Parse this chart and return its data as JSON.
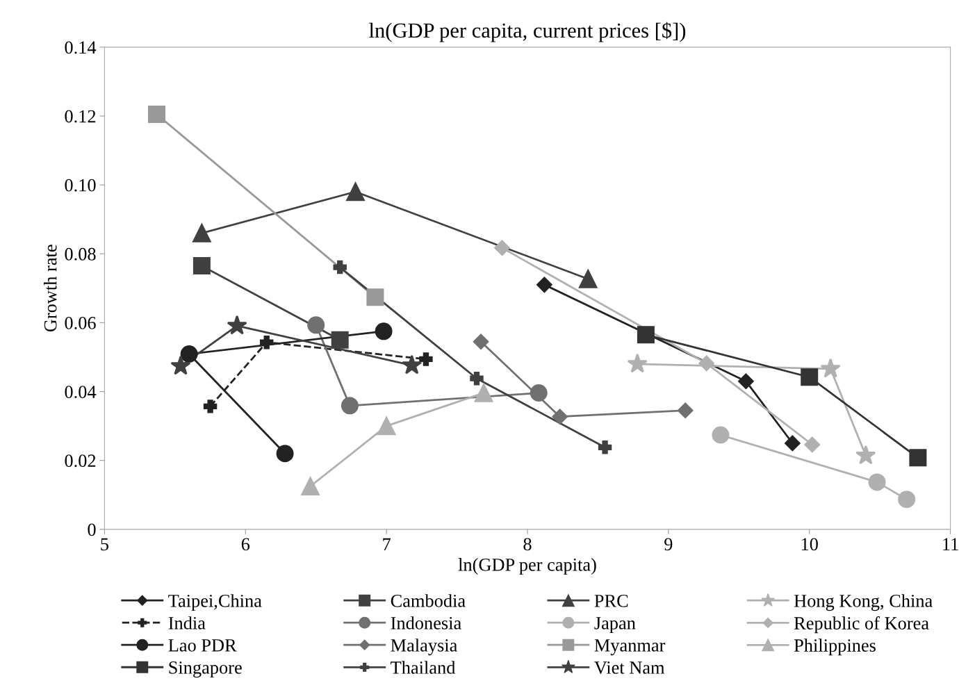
{
  "chart_data": {
    "type": "line",
    "title": "ln(GDP per capita, current prices [$])",
    "xlabel": "ln(GDP per capita)",
    "ylabel": "Growth rate",
    "xlim": [
      5,
      11
    ],
    "xticks": [
      5,
      6,
      7,
      8,
      9,
      10,
      11
    ],
    "ylim": [
      0,
      0.14
    ],
    "yticks": [
      {
        "value": 0,
        "label": "0"
      },
      {
        "value": 0.02,
        "label": "0.02"
      },
      {
        "value": 0.04,
        "label": "0.04"
      },
      {
        "value": 0.06,
        "label": "0.06"
      },
      {
        "value": 0.08,
        "label": "0.08"
      },
      {
        "value": 0.1,
        "label": "0.10"
      },
      {
        "value": 0.12,
        "label": "0.12"
      },
      {
        "value": 0.14,
        "label": "0.14"
      }
    ],
    "grid": false,
    "legend": "bottom",
    "series": [
      {
        "name": "Taipei,China",
        "color": "#222222",
        "marker": "diamond",
        "x": [
          8.12,
          9.55,
          9.88
        ],
        "values": [
          0.071,
          0.043,
          0.025
        ]
      },
      {
        "name": "Cambodia",
        "color": "#404040",
        "marker": "square",
        "x": [
          5.69,
          6.67
        ],
        "values": [
          0.0765,
          0.055
        ]
      },
      {
        "name": "PRC",
        "color": "#404040",
        "marker": "triangle",
        "x": [
          5.69,
          6.78,
          8.43
        ],
        "values": [
          0.086,
          0.098,
          0.0727
        ]
      },
      {
        "name": "Hong Kong, China",
        "color": "#b0b0b0",
        "marker": "star",
        "x": [
          8.78,
          10.15,
          10.4
        ],
        "values": [
          0.048,
          0.0466,
          0.0214
        ]
      },
      {
        "name": "India",
        "color": "#222222",
        "marker": "cross",
        "line_style": "dashed",
        "x": [
          5.75,
          6.15,
          7.28
        ],
        "values": [
          0.0357,
          0.0543,
          0.0494
        ]
      },
      {
        "name": "Indonesia",
        "color": "#707070",
        "marker": "circle",
        "x": [
          6.5,
          6.74,
          8.08
        ],
        "values": [
          0.0593,
          0.0359,
          0.0396
        ]
      },
      {
        "name": "Japan",
        "color": "#b0b0b0",
        "marker": "circle",
        "x": [
          9.37,
          10.48,
          10.69
        ],
        "values": [
          0.0274,
          0.0137,
          0.0087
        ]
      },
      {
        "name": "Republic of Korea",
        "color": "#b0b0b0",
        "marker": "diamond",
        "x": [
          7.82,
          9.27,
          10.02
        ],
        "values": [
          0.0817,
          0.0482,
          0.0246
        ]
      },
      {
        "name": "Lao PDR",
        "color": "#222222",
        "marker": "circle",
        "x": [
          6.28,
          5.6,
          6.98
        ],
        "values": [
          0.022,
          0.0509,
          0.0575
        ]
      },
      {
        "name": "Malaysia",
        "color": "#707070",
        "marker": "diamond",
        "x": [
          7.67,
          8.23,
          9.12
        ],
        "values": [
          0.0545,
          0.0327,
          0.0345
        ]
      },
      {
        "name": "Myanmar",
        "color": "#999999",
        "marker": "square",
        "x": [
          5.37,
          6.92
        ],
        "values": [
          0.1205,
          0.0674
        ]
      },
      {
        "name": "Philippines",
        "color": "#b0b0b0",
        "marker": "triangle",
        "x": [
          6.46,
          7.0,
          7.69
        ],
        "values": [
          0.0125,
          0.03,
          0.0396
        ]
      },
      {
        "name": "Singapore",
        "color": "#333333",
        "marker": "square",
        "x": [
          8.84,
          10.0,
          10.77
        ],
        "values": [
          0.0565,
          0.0442,
          0.0208
        ]
      },
      {
        "name": "Thailand",
        "color": "#404040",
        "marker": "cross",
        "x": [
          6.67,
          7.64,
          8.55
        ],
        "values": [
          0.0761,
          0.0438,
          0.0238
        ]
      },
      {
        "name": "Viet Nam",
        "color": "#404040",
        "marker": "star",
        "x": [
          5.54,
          5.94,
          7.18
        ],
        "values": [
          0.0474,
          0.0591,
          0.0476
        ]
      }
    ]
  }
}
